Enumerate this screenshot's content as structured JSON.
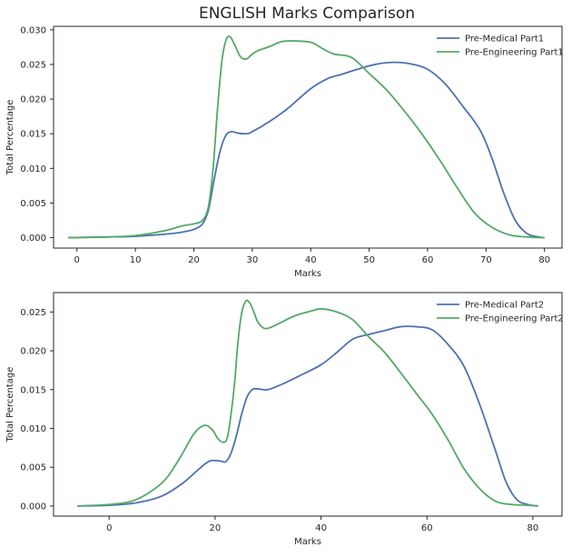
{
  "title": "ENGLISH Marks Comparison",
  "colors": {
    "series1": "#4c72b0",
    "series2": "#55a868"
  },
  "chart_data": [
    {
      "type": "line",
      "xlabel": "Marks",
      "ylabel": "Total Percentage",
      "xlim": [
        -4,
        83
      ],
      "ylim": [
        -0.0015,
        0.0305
      ],
      "xticks": [
        0,
        10,
        20,
        30,
        40,
        50,
        60,
        70,
        80
      ],
      "yticks": [
        0.0,
        0.005,
        0.01,
        0.015,
        0.02,
        0.025,
        0.03
      ],
      "ytick_labels": [
        "0.000",
        "0.005",
        "0.010",
        "0.015",
        "0.020",
        "0.025",
        "0.030"
      ],
      "legend_position": "top-right",
      "series": [
        {
          "name": "Pre-Medical Part1",
          "color": "#4c72b0",
          "x": [
            -1.5,
            5,
            10,
            15,
            18,
            20,
            21.5,
            22.5,
            23.5,
            24.5,
            25.5,
            26.5,
            27.5,
            29,
            30,
            33,
            36,
            40,
            43,
            45,
            48,
            51,
            54,
            57,
            60,
            63,
            66,
            69,
            71,
            73,
            75,
            77,
            79,
            80
          ],
          "y": [
            0.0,
            0.0001,
            0.0002,
            0.0005,
            0.0008,
            0.0012,
            0.002,
            0.004,
            0.0085,
            0.0125,
            0.0148,
            0.0153,
            0.0151,
            0.015,
            0.0153,
            0.0168,
            0.0186,
            0.0215,
            0.023,
            0.0235,
            0.0243,
            0.025,
            0.0253,
            0.0251,
            0.0243,
            0.0222,
            0.019,
            0.0155,
            0.0115,
            0.0065,
            0.0025,
            0.0006,
            0.0001,
            0.0
          ]
        },
        {
          "name": "Pre-Engineering Part1",
          "color": "#55a868",
          "x": [
            -1.5,
            5,
            10,
            15,
            18,
            20,
            21.5,
            22.5,
            23.3,
            24,
            24.8,
            25.5,
            26.2,
            27,
            28,
            29,
            30,
            31,
            33,
            35,
            37,
            40,
            42,
            44,
            47,
            50,
            53,
            56,
            59,
            62,
            65,
            68,
            71,
            74,
            77,
            80
          ],
          "y": [
            0.0,
            0.0001,
            0.0003,
            0.001,
            0.0017,
            0.002,
            0.0025,
            0.0045,
            0.01,
            0.018,
            0.0255,
            0.0285,
            0.029,
            0.0278,
            0.0261,
            0.0258,
            0.0265,
            0.027,
            0.0276,
            0.0283,
            0.0284,
            0.0282,
            0.0273,
            0.0265,
            0.026,
            0.0237,
            0.0213,
            0.0183,
            0.015,
            0.0113,
            0.0073,
            0.0036,
            0.0015,
            0.0004,
            0.0001,
            0.0
          ]
        }
      ]
    },
    {
      "type": "line",
      "xlabel": "Marks",
      "ylabel": "Total Percentage",
      "xlim": [
        -10.5,
        85.5
      ],
      "ylim": [
        -0.0013,
        0.0275
      ],
      "xticks": [
        0,
        20,
        40,
        60,
        80
      ],
      "yticks": [
        0.0,
        0.005,
        0.01,
        0.015,
        0.02,
        0.025
      ],
      "ytick_labels": [
        "0.000",
        "0.005",
        "0.010",
        "0.015",
        "0.020",
        "0.025"
      ],
      "legend_position": "top-right",
      "series": [
        {
          "name": "Pre-Medical Part2",
          "color": "#4c72b0",
          "x": [
            -6,
            0,
            5,
            10,
            14,
            17,
            19,
            21,
            22,
            23,
            24,
            25,
            26,
            27,
            28,
            30,
            33,
            36,
            40,
            43,
            46,
            49,
            52,
            55,
            58,
            61,
            64,
            67,
            70,
            73,
            75,
            77,
            79,
            81
          ],
          "y": [
            0.0,
            0.0001,
            0.0004,
            0.0013,
            0.003,
            0.0048,
            0.0058,
            0.0058,
            0.0057,
            0.0068,
            0.009,
            0.0118,
            0.014,
            0.015,
            0.0151,
            0.015,
            0.0158,
            0.0168,
            0.0182,
            0.0198,
            0.0215,
            0.0221,
            0.0226,
            0.0231,
            0.0231,
            0.0227,
            0.0208,
            0.018,
            0.013,
            0.007,
            0.003,
            0.0008,
            0.0002,
            0.0
          ]
        },
        {
          "name": "Pre-Engineering Part2",
          "color": "#55a868",
          "x": [
            -6,
            0,
            5,
            10,
            13,
            16,
            18,
            19.5,
            20.5,
            21.5,
            22.3,
            23,
            23.7,
            24.3,
            25,
            25.8,
            26.5,
            27.2,
            28,
            29,
            30,
            32,
            35,
            38,
            40,
            43,
            46,
            49,
            52,
            55,
            58,
            61,
            64,
            67,
            70,
            73,
            76,
            79,
            81
          ],
          "y": [
            0.0,
            0.0002,
            0.0008,
            0.003,
            0.0058,
            0.0093,
            0.0104,
            0.0098,
            0.0087,
            0.0082,
            0.0088,
            0.0118,
            0.016,
            0.021,
            0.0248,
            0.0264,
            0.0262,
            0.0252,
            0.0238,
            0.023,
            0.0229,
            0.0235,
            0.0245,
            0.0251,
            0.0254,
            0.025,
            0.024,
            0.0218,
            0.0198,
            0.0172,
            0.0145,
            0.0118,
            0.0085,
            0.0048,
            0.0022,
            0.0006,
            0.0002,
            0.0001,
            0.0
          ]
        }
      ]
    }
  ]
}
